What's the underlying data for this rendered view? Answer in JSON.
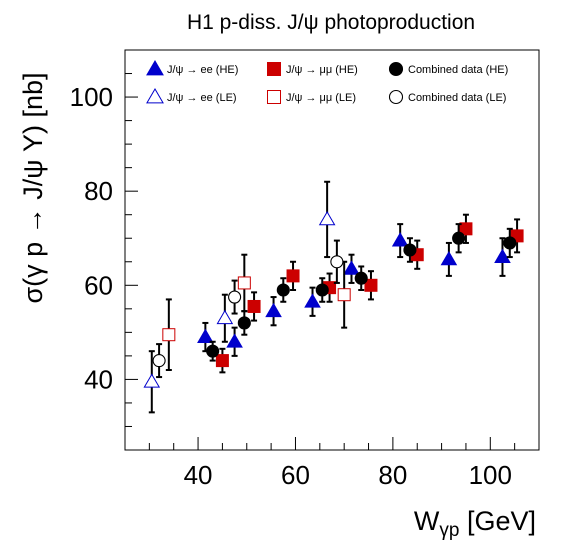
{
  "chart_data": {
    "type": "scatter",
    "title": "H1 p-diss. J/ψ photoproduction",
    "xlabel": "W_{γp} [GeV]",
    "xlabel_main": "W",
    "xlabel_sub": "γp",
    "xlabel_unit": " [GeV]",
    "ylabel": "σ(γ p → J/ψ Y) [nb]",
    "xlim": [
      25,
      110
    ],
    "ylim": [
      25,
      110
    ],
    "xticks": [
      40,
      60,
      80,
      100
    ],
    "yticks": [
      40,
      60,
      80,
      100
    ],
    "grid": false,
    "legend_position": "top",
    "series": [
      {
        "name": "J/ψ → ee (HE)",
        "marker": "triangle",
        "filled": true,
        "color": "#0000cc",
        "points": [
          {
            "x": 41.5,
            "y": 49.0,
            "err": 3.0
          },
          {
            "x": 47.5,
            "y": 48.0,
            "err": 3.0
          },
          {
            "x": 55.5,
            "y": 54.5,
            "err": 3.0
          },
          {
            "x": 63.5,
            "y": 56.5,
            "err": 3.0
          },
          {
            "x": 71.5,
            "y": 63.5,
            "err": 3.0
          },
          {
            "x": 81.5,
            "y": 69.5,
            "err": 3.5
          },
          {
            "x": 91.5,
            "y": 65.5,
            "err": 3.5
          },
          {
            "x": 102.5,
            "y": 66.0,
            "err": 4.0
          }
        ]
      },
      {
        "name": "J/ψ → ee (LE)",
        "marker": "triangle",
        "filled": false,
        "color": "#0000cc",
        "points": [
          {
            "x": 30.5,
            "y": 39.5,
            "err": 6.5
          },
          {
            "x": 45.5,
            "y": 53.0,
            "err": 5.0
          },
          {
            "x": 66.5,
            "y": 74.0,
            "err": 8.0
          }
        ]
      },
      {
        "name": "J/ψ → μμ (HE)",
        "marker": "square",
        "filled": true,
        "color": "#cc0000",
        "points": [
          {
            "x": 45.0,
            "y": 44.0,
            "err": 2.5
          },
          {
            "x": 51.5,
            "y": 55.5,
            "err": 3.0
          },
          {
            "x": 59.5,
            "y": 62.0,
            "err": 3.0
          },
          {
            "x": 67.0,
            "y": 59.5,
            "err": 3.0
          },
          {
            "x": 75.5,
            "y": 60.0,
            "err": 3.0
          },
          {
            "x": 85.0,
            "y": 66.5,
            "err": 3.0
          },
          {
            "x": 95.0,
            "y": 72.0,
            "err": 3.0
          },
          {
            "x": 105.5,
            "y": 70.5,
            "err": 3.5
          }
        ]
      },
      {
        "name": "J/ψ → μμ (LE)",
        "marker": "square",
        "filled": false,
        "color": "#cc0000",
        "points": [
          {
            "x": 34.0,
            "y": 49.5,
            "err": 7.5
          },
          {
            "x": 49.5,
            "y": 60.5,
            "err": 6.0
          },
          {
            "x": 70.0,
            "y": 58.0,
            "err": 7.0
          }
        ]
      },
      {
        "name": "Combined data (HE)",
        "marker": "circle",
        "filled": true,
        "color": "#000000",
        "points": [
          {
            "x": 43.0,
            "y": 46.0,
            "err": 2.0
          },
          {
            "x": 49.5,
            "y": 52.0,
            "err": 2.5
          },
          {
            "x": 57.5,
            "y": 59.0,
            "err": 2.5
          },
          {
            "x": 65.5,
            "y": 59.0,
            "err": 2.5
          },
          {
            "x": 73.5,
            "y": 61.5,
            "err": 2.5
          },
          {
            "x": 83.5,
            "y": 67.5,
            "err": 2.5
          },
          {
            "x": 93.5,
            "y": 70.0,
            "err": 3.0
          },
          {
            "x": 104.0,
            "y": 69.0,
            "err": 3.0
          }
        ]
      },
      {
        "name": "Combined data (LE)",
        "marker": "circle",
        "filled": false,
        "color": "#000000",
        "points": [
          {
            "x": 32.0,
            "y": 44.0,
            "err": 3.5
          },
          {
            "x": 47.5,
            "y": 57.5,
            "err": 3.5
          },
          {
            "x": 68.5,
            "y": 65.0,
            "err": 4.5
          }
        ]
      }
    ]
  }
}
